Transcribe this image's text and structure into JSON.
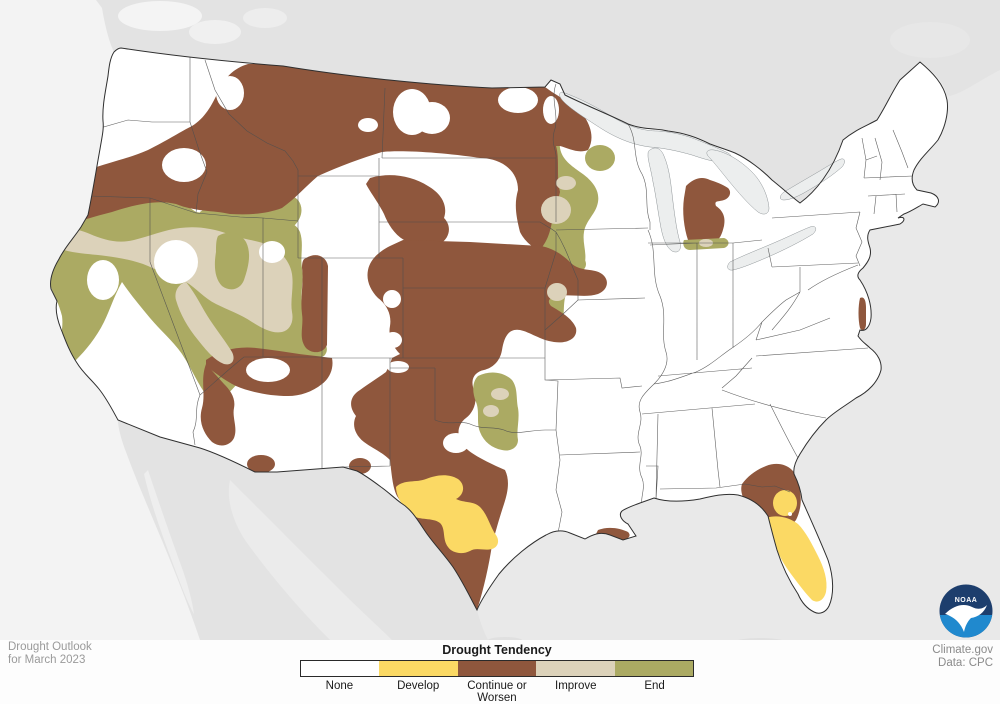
{
  "map": {
    "title": "United States Monthly Drought Outlook map",
    "region": "Contiguous United States with portions of Canada and Mexico",
    "colors": {
      "background_land_foreign": "#e3e3e3",
      "ocean_west": "#f3f3f3",
      "ocean_east": "#e9e9e9",
      "us_fill": "#ffffff",
      "state_border": "#4f4f4f",
      "national_border": "#2f2f2f",
      "lakes": "#eceeee"
    }
  },
  "legend": {
    "title": "Drought Tendency",
    "border_color": "#2a2a2a",
    "items": [
      {
        "label": "None",
        "color": "#ffffff"
      },
      {
        "label": "Develop",
        "color": "#fbd964"
      },
      {
        "label": "Continue or Worsen",
        "color": "#8f573d"
      },
      {
        "label": "Improve",
        "color": "#dcd2ba"
      },
      {
        "label": "End",
        "color": "#abaa63"
      }
    ]
  },
  "footer": {
    "outlook_line1": "Drought Outlook",
    "outlook_line2": "for March 2023",
    "source_line1": "Climate.gov",
    "source_line2": "Data: CPC"
  },
  "logo": {
    "name": "NOAA logo",
    "text": "NOAA",
    "navy": "#1d3e6d",
    "blue": "#2089ce"
  }
}
